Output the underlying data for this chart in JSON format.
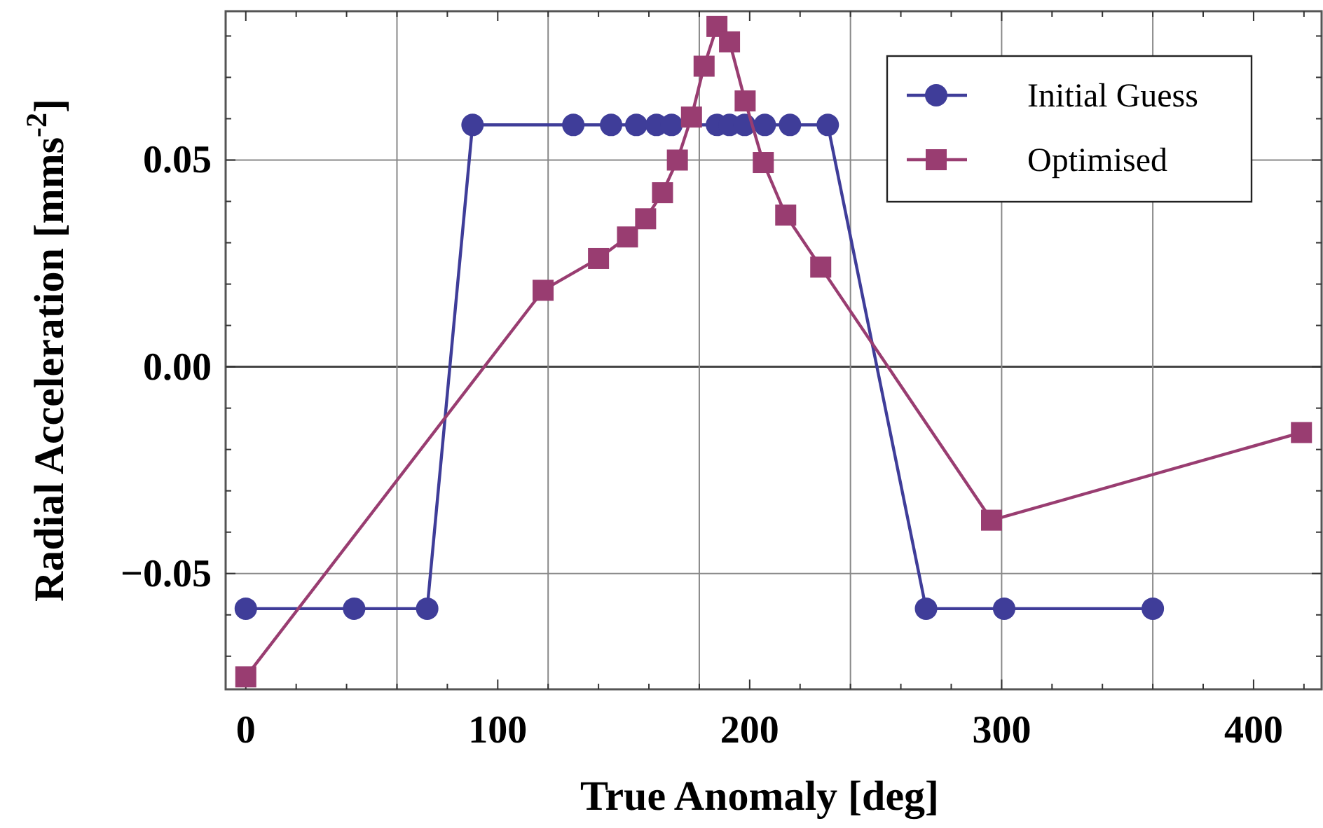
{
  "chart_data": {
    "type": "line",
    "xlabel": "True Anomaly [deg]",
    "ylabel": "Radial Acceleration  [mms$^{-2}$]",
    "xlim": [
      -8,
      427
    ],
    "ylim": [
      -0.078,
      0.086
    ],
    "xticks": [
      0,
      {
        "value": 20,
        "label": null
      },
      {
        "value": 40,
        "label": null
      },
      {
        "value": 60,
        "label": null
      },
      {
        "value": 80,
        "label": null
      },
      100,
      {
        "value": 120,
        "label": null
      },
      {
        "value": 140,
        "label": null
      },
      {
        "value": 160,
        "label": null
      },
      {
        "value": 180,
        "label": null
      },
      200,
      {
        "value": 220,
        "label": null
      },
      {
        "value": 240,
        "label": null
      },
      {
        "value": 260,
        "label": null
      },
      {
        "value": 280,
        "label": null
      },
      300,
      {
        "value": 320,
        "label": null
      },
      {
        "value": 340,
        "label": null
      },
      {
        "value": 360,
        "label": null
      },
      {
        "value": 380,
        "label": null
      },
      400,
      {
        "value": 420,
        "label": null
      }
    ],
    "yticks": [
      {
        "value": -0.07,
        "label": null
      },
      {
        "value": -0.06,
        "label": null
      },
      {
        "value": -0.05,
        "label": "−0.05"
      },
      {
        "value": -0.04,
        "label": null
      },
      {
        "value": -0.03,
        "label": null
      },
      {
        "value": -0.02,
        "label": null
      },
      {
        "value": -0.01,
        "label": null
      },
      {
        "value": 0,
        "label": "0.00"
      },
      {
        "value": 0.01,
        "label": null
      },
      {
        "value": 0.02,
        "label": null
      },
      {
        "value": 0.03,
        "label": null
      },
      {
        "value": 0.04,
        "label": null
      },
      {
        "value": 0.05,
        "label": "0.05"
      },
      {
        "value": 0.06,
        "label": null
      },
      {
        "value": 0.07,
        "label": null
      },
      {
        "value": 0.08,
        "label": null
      }
    ],
    "grid": "y",
    "legend": "top right",
    "ref_lines": [
      {
        "axis": "x",
        "value": 60,
        "color": "#888888"
      },
      {
        "axis": "x",
        "value": 120,
        "color": "#888888"
      },
      {
        "axis": "x",
        "value": 180,
        "color": "#888888"
      },
      {
        "axis": "x",
        "value": 240,
        "color": "#888888"
      },
      {
        "axis": "x",
        "value": 300,
        "color": "#888888"
      },
      {
        "axis": "x",
        "value": 360,
        "color": "#888888"
      }
    ],
    "series": [
      {
        "name": "Initial   Guess",
        "color": "#3f3d99",
        "marker": "circle",
        "x": [
          0,
          43,
          72,
          90,
          130,
          145,
          155,
          163,
          169,
          175,
          181,
          187,
          192,
          198,
          206,
          216,
          231,
          270,
          301,
          360
        ],
        "values": [
          -0.0585,
          -0.0585,
          -0.0585,
          0.0585,
          0.0585,
          0.0585,
          0.0585,
          0.0585,
          0.0585,
          null,
          null,
          0.0585,
          0.0585,
          0.0585,
          0.0585,
          0.0585,
          0.0585,
          -0.0585,
          -0.0585,
          -0.0585
        ]
      },
      {
        "name": "Optimised",
        "color": "#993d71",
        "marker": "square",
        "x": [
          0,
          118,
          140,
          151.5,
          158.7,
          165.4,
          171.3,
          176.9,
          181.9,
          187,
          192,
          198.2,
          205.4,
          214.3,
          228.2,
          296,
          419
        ],
        "values": [
          -0.075,
          0.0185,
          0.0262,
          0.0314,
          0.0358,
          0.0421,
          0.05,
          0.0604,
          0.0727,
          0.0823,
          0.0786,
          0.0643,
          0.0494,
          0.0367,
          0.0241,
          -0.0371,
          -0.0159
        ]
      }
    ]
  }
}
